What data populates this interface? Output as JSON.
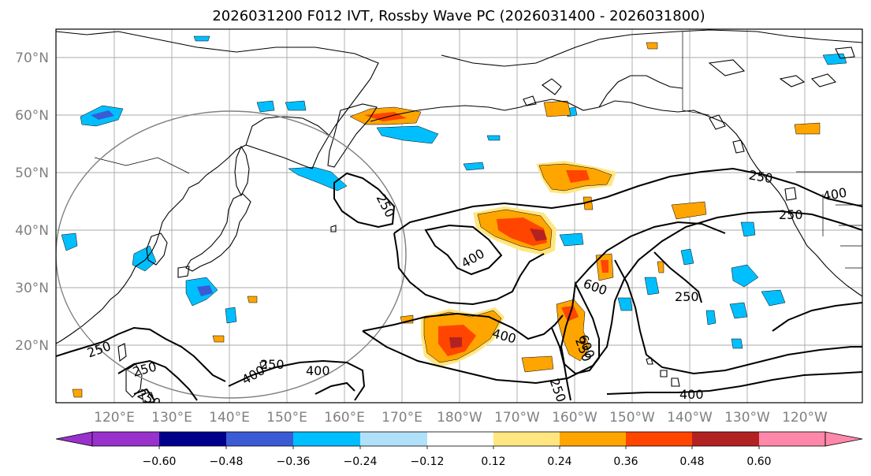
{
  "title": "2026031200 F012 IVT, Rossby Wave PC (2026031400 - 2026031800)",
  "lat_labels": [
    "70°N",
    "60°N",
    "50°N",
    "40°N",
    "30°N",
    "20°N"
  ],
  "lon_labels": [
    "120°E",
    "130°E",
    "140°E",
    "150°E",
    "160°E",
    "170°E",
    "180°W",
    "170°W",
    "160°W",
    "150°W",
    "140°W",
    "130°W",
    "120°W"
  ],
  "contour_labels": [
    "250",
    "400",
    "600",
    "250",
    "250",
    "400",
    "250",
    "250",
    "400",
    "250",
    "400",
    "250",
    "250",
    "400",
    "250",
    "250",
    "400",
    "600"
  ],
  "colorbar": {
    "colors": [
      "#9932cc",
      "#00008b",
      "#3a5bd4",
      "#00bfff",
      "#b0e0fa",
      "#ffffff",
      "#ffe680",
      "#ffa500",
      "#ff4500",
      "#b22222",
      "#ff88aa"
    ],
    "tick_labels": [
      "−0.60",
      "−0.48",
      "−0.36",
      "−0.24",
      "−0.12",
      "0.12",
      "0.24",
      "0.36",
      "0.48",
      "0.60"
    ]
  }
}
